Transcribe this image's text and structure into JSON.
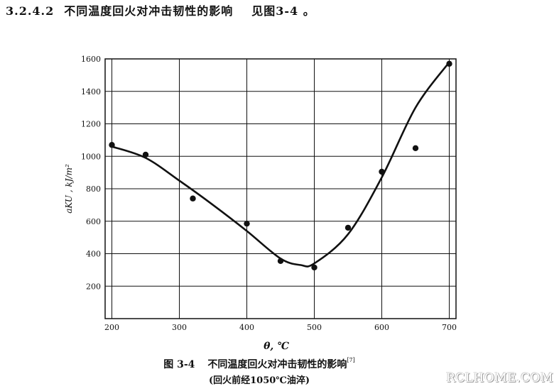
{
  "section": {
    "number": "3.2.4.2",
    "title": "不同温度回火对冲击韧性的影响",
    "reference": "见图3-4 。"
  },
  "chart_data": {
    "type": "scatter",
    "xlabel": "θ, ℃",
    "ylabel": "aKU , kJ/m²",
    "xlim": [
      190,
      710
    ],
    "ylim": [
      0,
      1600
    ],
    "xticks": [
      200,
      300,
      400,
      500,
      600,
      700
    ],
    "yticks": [
      200,
      400,
      600,
      800,
      1000,
      1200,
      1400,
      1600
    ],
    "grid": true,
    "series": [
      {
        "kind": "points",
        "x": [
          200,
          250,
          320,
          400,
          450,
          500,
          550,
          600,
          650,
          700
        ],
        "y": [
          1070,
          1010,
          740,
          585,
          355,
          315,
          560,
          905,
          1050,
          1570
        ]
      },
      {
        "kind": "fitted-curve",
        "x": [
          200,
          250,
          300,
          350,
          400,
          450,
          480,
          500,
          550,
          600,
          650,
          700
        ],
        "y": [
          1060,
          990,
          850,
          700,
          540,
          370,
          330,
          340,
          520,
          870,
          1300,
          1580
        ]
      }
    ]
  },
  "caption": {
    "figure_no": "图 3-4",
    "title": "不同温度回火对冲击韧性的影响",
    "ref": "[7]",
    "note": "(回火前经1050℃油淬)"
  },
  "watermark": "RCLHOME.COM"
}
